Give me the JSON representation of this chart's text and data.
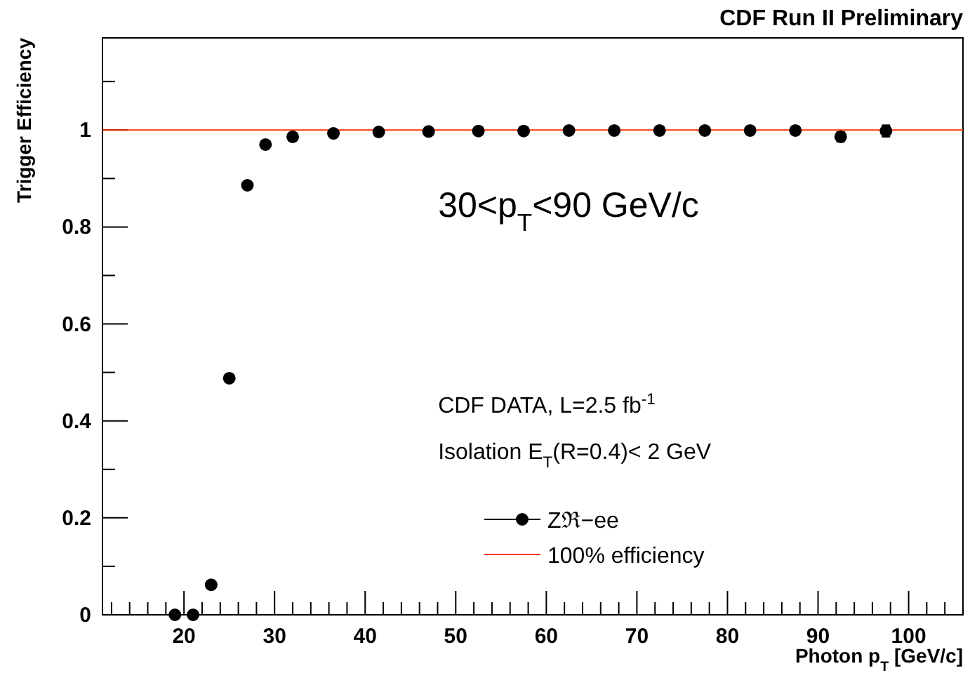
{
  "chart_data": {
    "type": "scatter",
    "title": "CDF Run II Preliminary",
    "xlabel": "Photon p$_{T}$ [GeV/c]",
    "ylabel": "Trigger Efficiency",
    "annotations": [
      "30<p$_{T}$<90 GeV/c",
      "CDF DATA, L=2.5 fb$^{-1}$",
      "Isolation E$_{T}$(R=0.4)< 2 GeV"
    ],
    "x": [
      19,
      21,
      23,
      25,
      27,
      29,
      32,
      36.5,
      41.5,
      47,
      52.5,
      57.5,
      62.5,
      67.5,
      72.5,
      77.5,
      82.5,
      87.5,
      92.5,
      97.5
    ],
    "series": [
      {
        "name": "Zℜ−ee",
        "color": "#000000",
        "values": [
          0,
          0,
          0.062,
          0.488,
          0.886,
          0.97,
          0.986,
          0.993,
          0.996,
          0.997,
          0.998,
          0.998,
          0.999,
          0.999,
          0.999,
          0.999,
          0.999,
          0.999,
          0.986,
          0.998
        ],
        "errors": [
          null,
          null,
          null,
          null,
          null,
          null,
          null,
          null,
          null,
          null,
          null,
          null,
          null,
          null,
          null,
          null,
          null,
          null,
          0.01,
          0.012
        ]
      }
    ],
    "ref_lines": [
      {
        "axis": "y",
        "value": 1,
        "label": "100% efficiency",
        "color": "#ff3300"
      }
    ],
    "marker": "circle",
    "legend": "bottom",
    "xlim": [
      11,
      106
    ],
    "ylim": [
      0,
      1.19
    ],
    "xticks": [
      {
        "value": 12,
        "label": null
      },
      {
        "value": 14,
        "label": null
      },
      {
        "value": 16,
        "label": null
      },
      {
        "value": 18,
        "label": null
      },
      20,
      {
        "value": 22,
        "label": null
      },
      {
        "value": 24,
        "label": null
      },
      {
        "value": 26,
        "label": null
      },
      {
        "value": 28,
        "label": null
      },
      30,
      {
        "value": 32,
        "label": null
      },
      {
        "value": 34,
        "label": null
      },
      {
        "value": 36,
        "label": null
      },
      {
        "value": 38,
        "label": null
      },
      40,
      {
        "value": 42,
        "label": null
      },
      {
        "value": 44,
        "label": null
      },
      {
        "value": 46,
        "label": null
      },
      {
        "value": 48,
        "label": null
      },
      50,
      {
        "value": 52,
        "label": null
      },
      {
        "value": 54,
        "label": null
      },
      {
        "value": 56,
        "label": null
      },
      {
        "value": 58,
        "label": null
      },
      60,
      {
        "value": 62,
        "label": null
      },
      {
        "value": 64,
        "label": null
      },
      {
        "value": 66,
        "label": null
      },
      {
        "value": 68,
        "label": null
      },
      70,
      {
        "value": 72,
        "label": null
      },
      {
        "value": 74,
        "label": null
      },
      {
        "value": 76,
        "label": null
      },
      {
        "value": 78,
        "label": null
      },
      80,
      {
        "value": 82,
        "label": null
      },
      {
        "value": 84,
        "label": null
      },
      {
        "value": 86,
        "label": null
      },
      {
        "value": 88,
        "label": null
      },
      90,
      {
        "value": 92,
        "label": null
      },
      {
        "value": 94,
        "label": null
      },
      {
        "value": 96,
        "label": null
      },
      {
        "value": 98,
        "label": null
      },
      100,
      {
        "value": 102,
        "label": null
      },
      {
        "value": 104,
        "label": null
      }
    ],
    "yticks": [
      0,
      {
        "value": 0.1,
        "label": null
      },
      0.2,
      {
        "value": 0.3,
        "label": null
      },
      0.4,
      {
        "value": 0.5,
        "label": null
      },
      0.6,
      {
        "value": 0.7,
        "label": null
      },
      0.8,
      {
        "value": 0.9,
        "label": null
      },
      1,
      {
        "value": 1.1,
        "label": null
      }
    ]
  }
}
